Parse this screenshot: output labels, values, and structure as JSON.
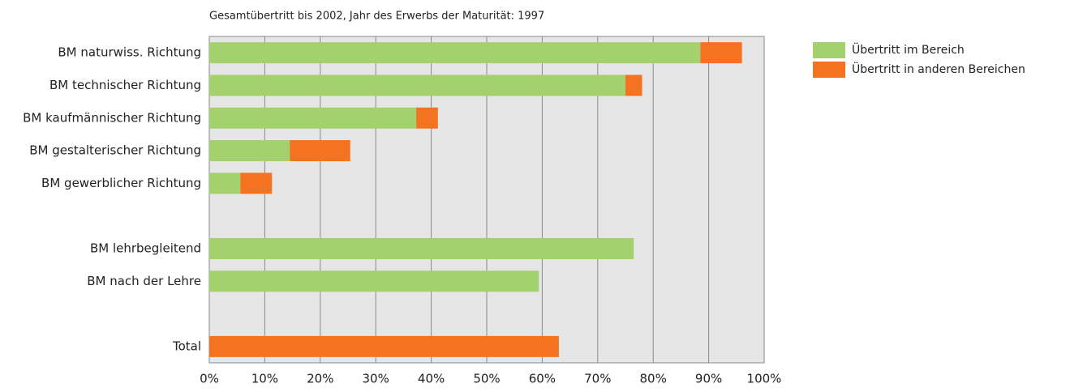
{
  "chart_data": {
    "type": "hbar-stacked",
    "title": "Gesamtübertritt bis 2002, Jahr des Erwerbs der Maturität: 1997",
    "categories": [
      "BM naturwiss. Richtung",
      "BM technischer Richtung",
      "BM kaufmännischer Richtung",
      "BM gestalterischer Richtung",
      "BM gewerblicher Richtung",
      null,
      "BM lehrbegleitend",
      "BM nach der Lehre",
      null,
      "Total"
    ],
    "series": [
      {
        "name": "Übertritt im Bereich",
        "color": "#a3d16e",
        "values": [
          88.5,
          75,
          37.3,
          14.5,
          5.6,
          null,
          76.5,
          59.4,
          null,
          null
        ]
      },
      {
        "name": "Übertritt in anderen Bereichen",
        "color": "#f47321",
        "values": [
          7.5,
          3,
          3.9,
          10.9,
          5.7,
          null,
          null,
          null,
          null,
          63
        ]
      }
    ],
    "xlim": [
      0,
      100
    ],
    "xticks": [
      {
        "value": 0,
        "label": "0%"
      },
      {
        "value": 10,
        "label": "10%"
      },
      {
        "value": 20,
        "label": "20%"
      },
      {
        "value": 30,
        "label": "30%"
      },
      {
        "value": 40,
        "label": "40%"
      },
      {
        "value": 50,
        "label": "50%"
      },
      {
        "value": 60,
        "label": "60%"
      },
      {
        "value": 70,
        "label": "70%"
      },
      {
        "value": 80,
        "label": "80%"
      },
      {
        "value": 90,
        "label": "90%"
      },
      {
        "value": 100,
        "label": "100%"
      }
    ],
    "grid": true
  }
}
